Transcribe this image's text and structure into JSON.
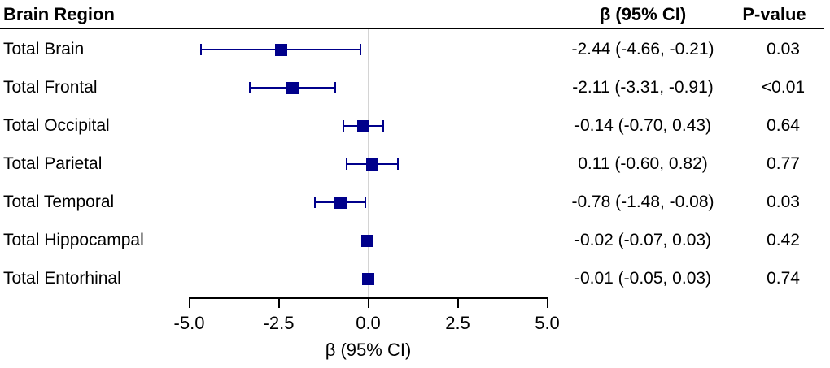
{
  "header": {
    "brain_region": "Brain Region",
    "beta_ci": "β (95% CI)",
    "p_value": "P-value"
  },
  "colors": {
    "marker": "#00008B",
    "ci_bar": "#00008B",
    "zero_line": "#d4d4d4",
    "axis": "#000000",
    "text": "#000000"
  },
  "chart_data": {
    "type": "scatter",
    "subtype": "forest-plot",
    "title": "",
    "xlabel": "β (95% CI)",
    "ylabel": "",
    "xlim": [
      -5.0,
      5.0
    ],
    "xticks": [
      -5.0,
      -2.5,
      0.0,
      2.5,
      5.0
    ],
    "xtick_labels": [
      "-5.0",
      "-2.5",
      "0.0",
      "2.5",
      "5.0"
    ],
    "reference_line_x": 0,
    "grid": false,
    "legend": "none",
    "columns": [
      "Brain Region",
      "β (95% CI)",
      "P-value"
    ],
    "rows": [
      {
        "label": "Total Brain",
        "beta": -2.44,
        "ci_low": -4.66,
        "ci_high": -0.21,
        "beta_text": "-2.44 (-4.66, -0.21)",
        "p": "0.03"
      },
      {
        "label": "Total Frontal",
        "beta": -2.11,
        "ci_low": -3.31,
        "ci_high": -0.91,
        "beta_text": "-2.11 (-3.31, -0.91)",
        "p": "<0.01"
      },
      {
        "label": "Total Occipital",
        "beta": -0.14,
        "ci_low": -0.7,
        "ci_high": 0.43,
        "beta_text": "-0.14 (-0.70, 0.43)",
        "p": "0.64"
      },
      {
        "label": "Total Parietal",
        "beta": 0.11,
        "ci_low": -0.6,
        "ci_high": 0.82,
        "beta_text": "0.11 (-0.60, 0.82)",
        "p": "0.77"
      },
      {
        "label": "Total Temporal",
        "beta": -0.78,
        "ci_low": -1.48,
        "ci_high": -0.08,
        "beta_text": "-0.78 (-1.48, -0.08)",
        "p": "0.03"
      },
      {
        "label": "Total Hippocampal",
        "beta": -0.02,
        "ci_low": -0.07,
        "ci_high": 0.03,
        "beta_text": "-0.02 (-0.07, 0.03)",
        "p": "0.42"
      },
      {
        "label": "Total Entorhinal",
        "beta": -0.01,
        "ci_low": -0.05,
        "ci_high": 0.03,
        "beta_text": "-0.01 (-0.05, 0.03)",
        "p": "0.74"
      }
    ]
  }
}
